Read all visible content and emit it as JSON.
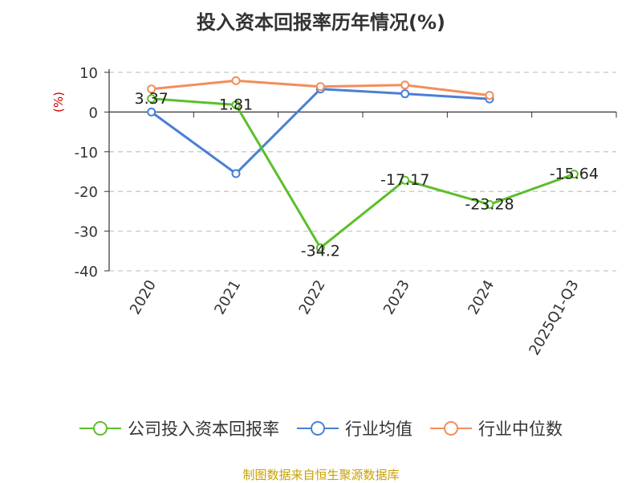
{
  "chart_data": {
    "type": "line",
    "title": "投入资本回报率历年情况(%)",
    "ylabel": "(%)",
    "xlabel": "",
    "categories": [
      "2020",
      "2021",
      "2022",
      "2023",
      "2024",
      "2025Q1-Q3"
    ],
    "ylim": [
      -40,
      10
    ],
    "yticks": [
      10,
      0,
      -10,
      -20,
      -30,
      -40
    ],
    "grid": true,
    "legend_position": "bottom",
    "series": [
      {
        "name": "公司投入资本回报率",
        "color": "#5cbf2a",
        "values": [
          3.37,
          1.81,
          -34.2,
          -17.17,
          -23.28,
          -15.64
        ],
        "labels": [
          "3.37",
          "1.81",
          "-34.2",
          "-17.17",
          "-23.28",
          "-15.64"
        ]
      },
      {
        "name": "行业均值",
        "color": "#4a7fd6",
        "values": [
          0.0,
          -15.5,
          5.8,
          4.6,
          3.3,
          null
        ]
      },
      {
        "name": "行业中位数",
        "color": "#f28e5c",
        "values": [
          5.8,
          7.9,
          6.4,
          6.8,
          4.2,
          null
        ]
      }
    ]
  },
  "footer": {
    "source": "制图数据来自恒生聚源数据库"
  }
}
